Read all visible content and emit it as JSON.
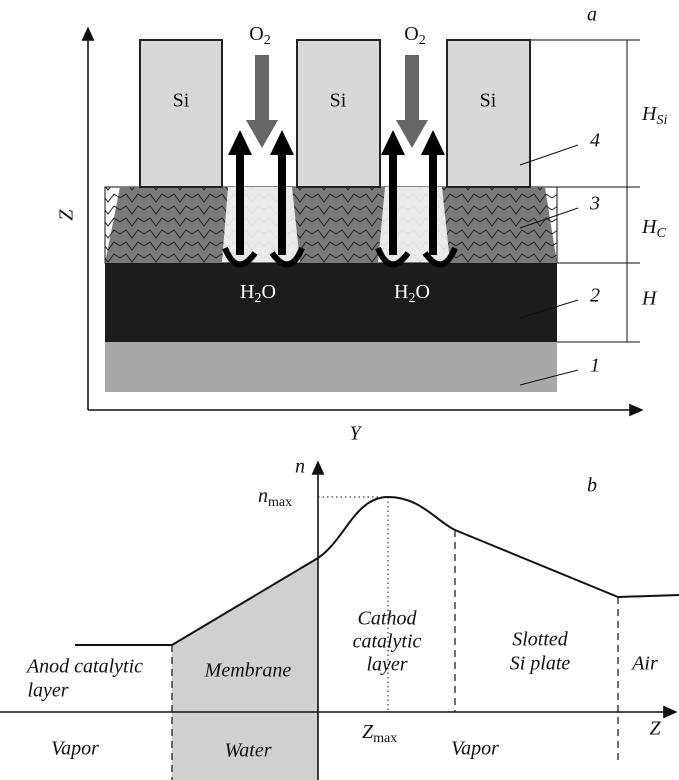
{
  "panel_a": {
    "label": "a",
    "oxygen": [
      {
        "base": "O",
        "sub": "2"
      },
      {
        "base": "O",
        "sub": "2"
      }
    ],
    "si_blocks": [
      "Si",
      "Si",
      "Si"
    ],
    "water": [
      {
        "base": "H",
        "sub": "2",
        "tail": "O"
      },
      {
        "base": "H",
        "sub": "2",
        "tail": "O"
      }
    ],
    "dimensions": [
      {
        "base": "H",
        "sub": "Si"
      },
      {
        "base": "H",
        "sub": "C"
      },
      {
        "base": "H"
      }
    ],
    "layer_numbers": [
      "1",
      "2",
      "3",
      "4"
    ],
    "axis_z": "Z",
    "axis_y": "Y"
  },
  "panel_b": {
    "label": "b",
    "axis_n": "n",
    "n_max": {
      "base": "n",
      "sub": "max"
    },
    "z_max": {
      "base": "Z",
      "sub": "max"
    },
    "axis_z": "Z",
    "regions": [
      {
        "lines": [
          "Anod catalytic",
          "layer"
        ]
      },
      {
        "lines": [
          "Membrane"
        ]
      },
      {
        "lines": [
          "Cathod",
          "catalytic",
          "layer"
        ]
      },
      {
        "lines": [
          "Slotted",
          "Si plate"
        ]
      },
      {
        "lines": [
          "Air"
        ]
      }
    ],
    "phases": [
      "Vapor",
      "Water",
      "Vapor"
    ]
  }
}
